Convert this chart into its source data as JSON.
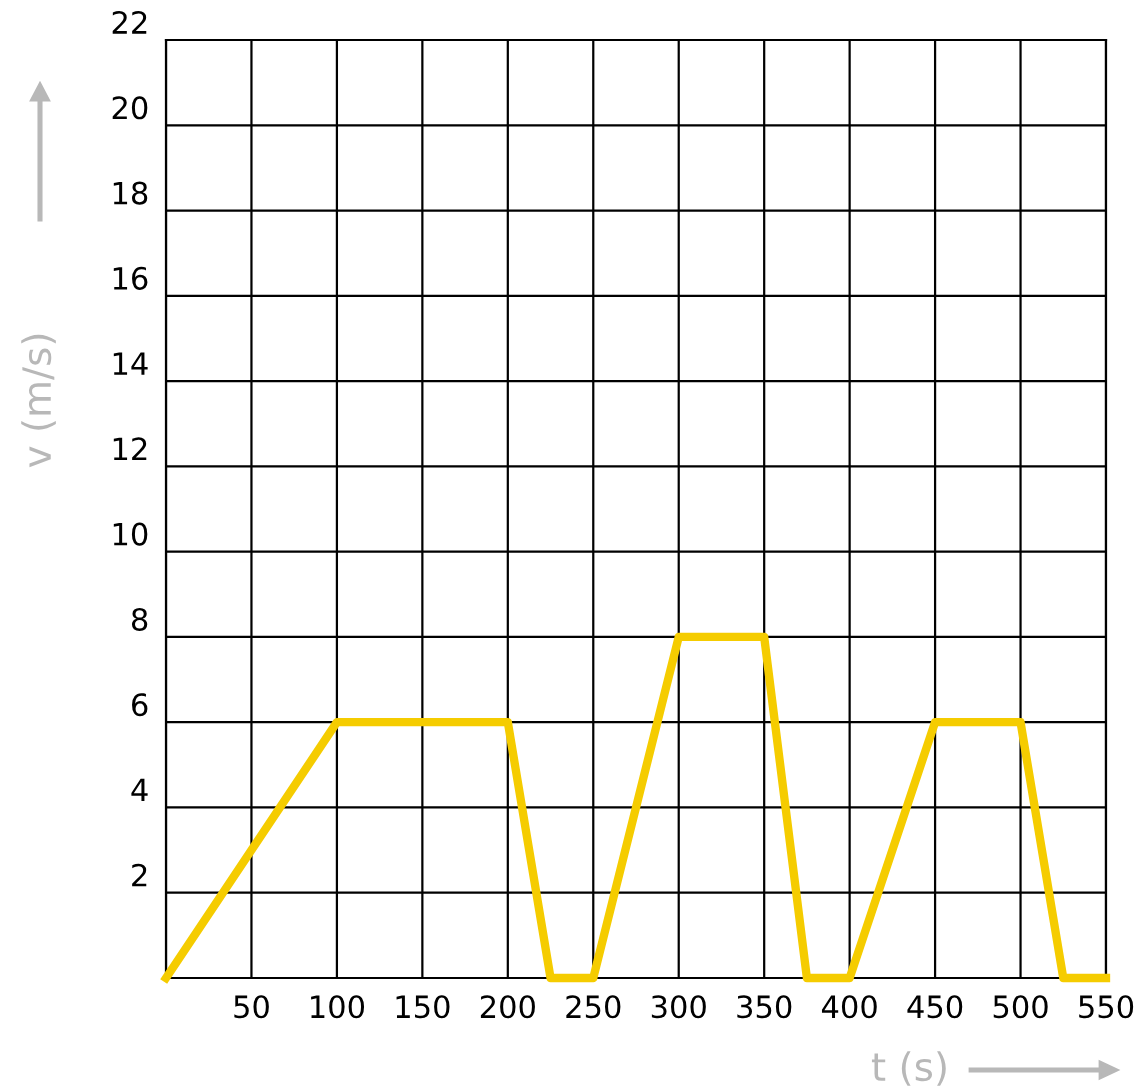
{
  "chart_data": {
    "type": "line",
    "xlabel": "t (s)",
    "ylabel": "v (m/s)",
    "x": [
      0,
      100,
      200,
      225,
      250,
      300,
      350,
      375,
      400,
      450,
      500,
      525,
      550
    ],
    "series": [
      {
        "color": "#f5cc00",
        "values": [
          0,
          6,
          6,
          0,
          0,
          8,
          8,
          0,
          0,
          6,
          6,
          0,
          0
        ]
      }
    ],
    "xlim": [
      0,
      550
    ],
    "ylim": [
      0,
      22
    ],
    "xticks": [
      {
        "value": 0,
        "label": null
      },
      50,
      100,
      150,
      200,
      250,
      300,
      350,
      400,
      450,
      500,
      550
    ],
    "yticks": [
      {
        "value": 0,
        "label": null
      },
      2,
      4,
      6,
      8,
      10,
      12,
      14,
      16,
      18,
      20,
      22
    ],
    "grid": true,
    "marker": "none",
    "line_style": "solid"
  }
}
